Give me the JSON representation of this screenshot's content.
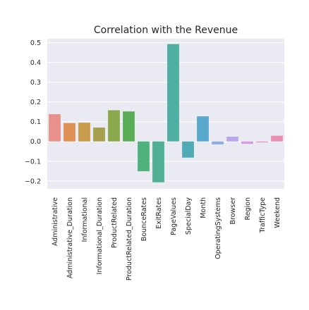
{
  "chart_data": {
    "type": "bar",
    "title": "Correlation with the Revenue",
    "xlabel": "",
    "ylabel": "",
    "ylim": [
      -0.24,
      0.52
    ],
    "yticks": [
      0.5,
      0.4,
      0.3,
      0.2,
      0.1,
      0.0,
      -0.1,
      -0.2
    ],
    "ytick_labels": [
      "0.5",
      "0.4",
      "0.3",
      "0.2",
      "0.1",
      "0.0",
      "−0.1",
      "−0.2"
    ],
    "grid": true,
    "legend": "none",
    "categories": [
      "Administrative",
      "Administrative_Duration",
      "Informational",
      "Informational_Duration",
      "ProductRelated",
      "ProductRelated_Duration",
      "BounceRates",
      "ExitRates",
      "PageValues",
      "SpecialDay",
      "Month",
      "OperatingSystems",
      "Browser",
      "Region",
      "TrafficType",
      "Weekend"
    ],
    "values": [
      0.138,
      0.093,
      0.095,
      0.07,
      0.158,
      0.152,
      -0.151,
      -0.207,
      0.493,
      -0.082,
      0.127,
      -0.015,
      0.024,
      -0.012,
      -0.005,
      0.029
    ],
    "colors": [
      "#e8918a",
      "#df9154",
      "#c99b4d",
      "#a59f4b",
      "#8aa84c",
      "#58ad55",
      "#4fb27d",
      "#51b093",
      "#4eaea1",
      "#50aab6",
      "#59a8cd",
      "#8eaee1",
      "#b8a7eb",
      "#d39ae8",
      "#e88fd3",
      "#e98fb1"
    ]
  }
}
